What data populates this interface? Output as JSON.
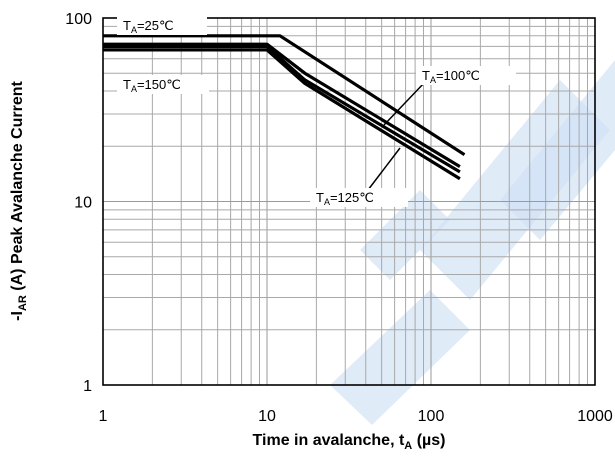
{
  "chart_data": {
    "type": "line",
    "xlabel": "Time in avalanche, t",
    "xlabel_sub": "A",
    "xlabel_units": " (µs)",
    "ylabel": "-I",
    "ylabel_sub": "AR",
    "ylabel_rest": " (A) Peak Avalanche Current",
    "x_scale": "log",
    "y_scale": "log",
    "xlim": [
      1,
      1000
    ],
    "ylim": [
      1,
      100
    ],
    "x_ticks": [
      "1",
      "10",
      "100",
      "1000"
    ],
    "y_ticks": [
      "1",
      "10",
      "100"
    ],
    "grid": true,
    "series": [
      {
        "name": "TA=25℃",
        "x": [
          1,
          12,
          160
        ],
        "y": [
          80,
          80,
          18
        ]
      },
      {
        "name": "TA=100℃",
        "x": [
          1,
          10,
          17,
          150
        ],
        "y": [
          72,
          72,
          50,
          15.5
        ]
      },
      {
        "name": "TA=125℃",
        "x": [
          1,
          10,
          17,
          150
        ],
        "y": [
          70,
          70,
          46,
          14.5
        ]
      },
      {
        "name": "TA=150℃",
        "x": [
          1,
          10,
          17,
          150
        ],
        "y": [
          67,
          67,
          44,
          13.3
        ]
      }
    ],
    "annotations": [
      {
        "id": "ta25",
        "prefix": "T",
        "sub": "A",
        "suffix": "=25℃"
      },
      {
        "id": "ta150",
        "prefix": "T",
        "sub": "A",
        "suffix": "=150℃"
      },
      {
        "id": "ta100",
        "prefix": "T",
        "sub": "A",
        "suffix": "=100℃"
      },
      {
        "id": "ta125",
        "prefix": "T",
        "sub": "A",
        "suffix": "=125℃"
      }
    ]
  }
}
